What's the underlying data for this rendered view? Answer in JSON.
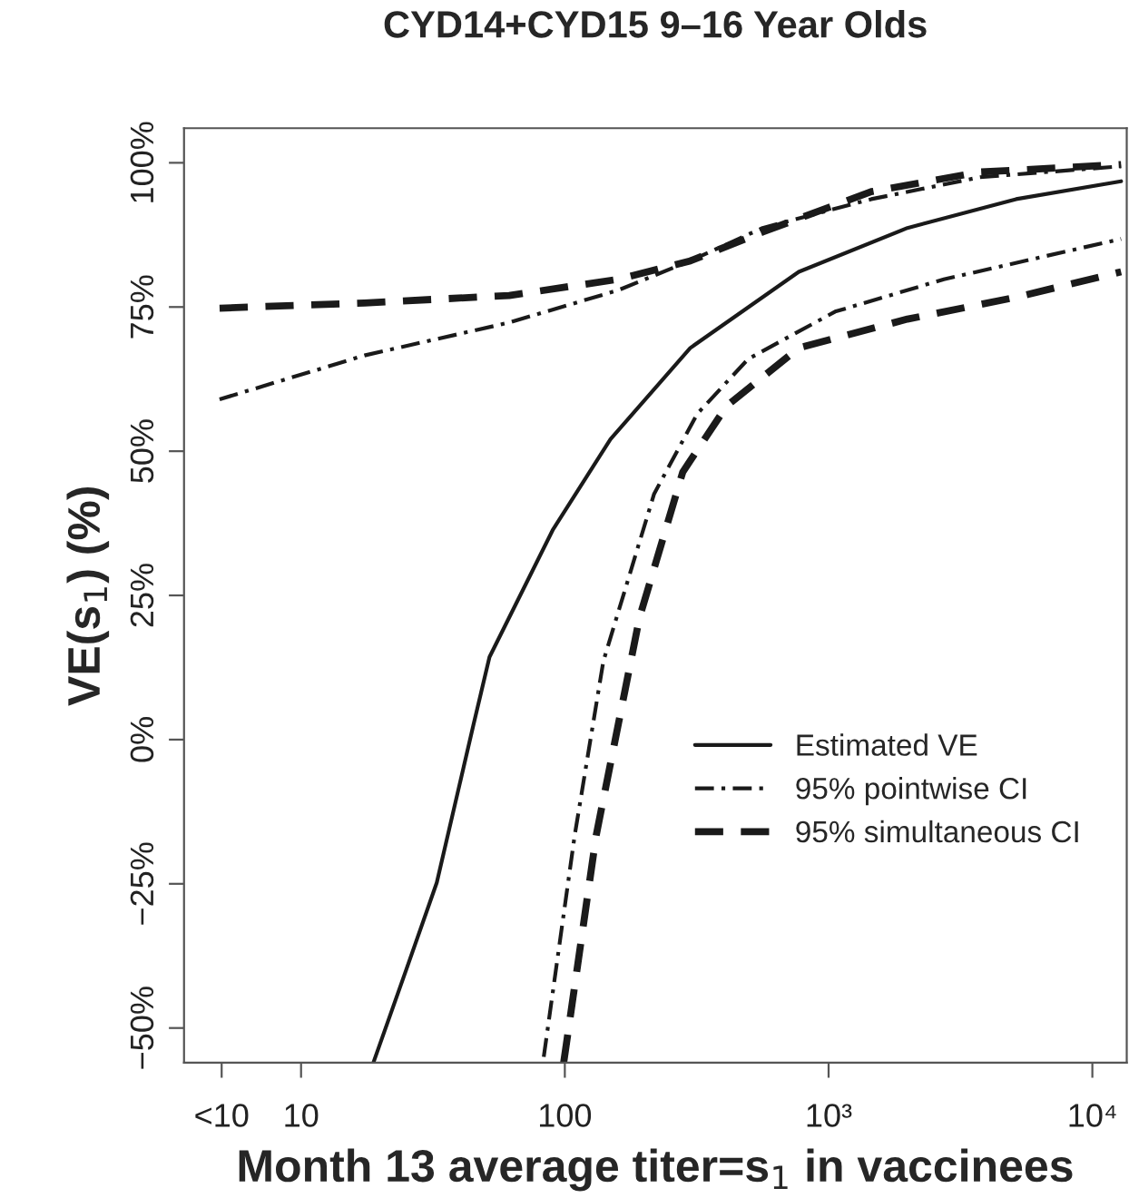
{
  "chart_data": {
    "type": "line",
    "title": "CYD14+CYD15 9–16 Year Olds",
    "xlabel": "Month 13 average titer=s$_{1}$ in vaccinees",
    "ylabel": "VE(s$_{1}$) (%)",
    "log": "x",
    "xlim": [
      3.6,
      13500
    ],
    "ylim": [
      -56,
      106
    ],
    "xticks": [
      {
        "value": 5,
        "label": "<10"
      },
      10,
      100,
      {
        "value": 1000,
        "label": "10³"
      },
      {
        "value": 10000,
        "label": "10⁴"
      }
    ],
    "yticks": [
      {
        "value": -50,
        "label": "−50%"
      },
      {
        "value": -25,
        "label": "−25%"
      },
      {
        "value": 0,
        "label": "0%"
      },
      {
        "value": 25,
        "label": "25%"
      },
      {
        "value": 50,
        "label": "50%"
      },
      {
        "value": 75,
        "label": "75%"
      },
      {
        "value": 100,
        "label": "100%"
      }
    ],
    "grid": false,
    "legend": "bottom right",
    "series": [
      {
        "name": "Estimated VE",
        "color": "#1a1a1a",
        "line_style": "solid",
        "x": [
          18.8,
          25,
          32.7,
          44.9,
          51.8,
          89.9,
          149,
          299,
          771,
          1990,
          5140,
          12850
        ],
        "values": [
          -56,
          -40,
          -24.8,
          2.3,
          14.3,
          36.3,
          52.1,
          67.9,
          81.1,
          88.7,
          93.7,
          96.8
        ]
      },
      {
        "name": "95% pointwise CI",
        "color": "#1a1a1a",
        "line_style": "dashdot",
        "x": [
          4.91,
          17.4,
          61.5,
          159,
          299,
          562,
          1452,
          3750,
          12850
        ],
        "values": [
          59.0,
          66.6,
          72.3,
          77.9,
          83.0,
          88.7,
          93.7,
          97.5,
          99.4
        ]
      },
      {
        "color": "#1a1a1a",
        "line_style": "dashdot",
        "x": [
          83.2,
          109,
          140,
          218,
          318,
          496,
          1059,
          2735,
          12850
        ],
        "values": [
          -55,
          -16.6,
          13.6,
          42.6,
          56.5,
          66.0,
          74.2,
          79.8,
          86.8
        ]
      },
      {
        "name": "95% simultaneous CI",
        "color": "#1a1a1a",
        "line_style": "dashed",
        "x": [
          4.91,
          17.4,
          61.5,
          159,
          299,
          562,
          1452,
          3750,
          12850
        ],
        "values": [
          74.8,
          75.7,
          77.0,
          79.8,
          83.0,
          88.0,
          95.0,
          98.4,
          99.7
        ]
      },
      {
        "color": "#1a1a1a",
        "line_style": "dashed",
        "x": [
          99,
          102,
          131.5,
          192,
          280,
          410,
          771,
          1990,
          5140,
          12850
        ],
        "values": [
          -56,
          -51.9,
          -16.6,
          21.2,
          46.4,
          57.8,
          67.9,
          72.9,
          76.7,
          81.1
        ]
      }
    ]
  }
}
